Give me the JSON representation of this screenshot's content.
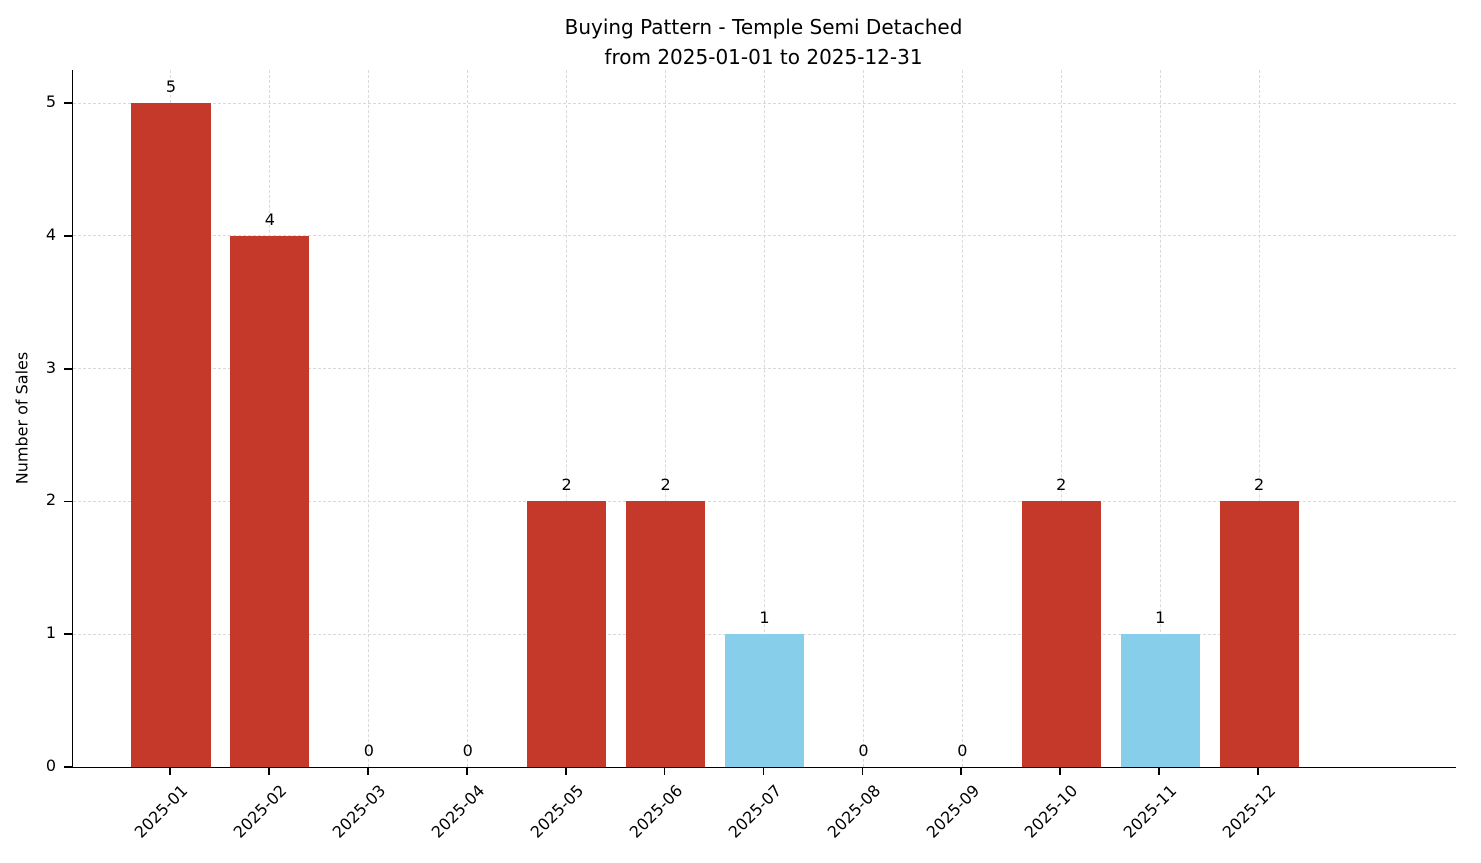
{
  "chart_data": {
    "type": "bar",
    "title": "Buying Pattern - Temple Semi Detached",
    "subtitle": "from 2025-01-01 to 2025-12-31",
    "ylabel": "Number of Sales",
    "xlabel": "",
    "categories": [
      "2025-01",
      "2025-02",
      "2025-03",
      "2025-04",
      "2025-05",
      "2025-06",
      "2025-07",
      "2025-08",
      "2025-09",
      "2025-10",
      "2025-11",
      "2025-12"
    ],
    "values": [
      5,
      4,
      0,
      0,
      2,
      2,
      1,
      0,
      0,
      2,
      1,
      2
    ],
    "bar_colors": [
      "#c5392b",
      "#c5392b",
      "#c5392b",
      "#c5392b",
      "#c5392b",
      "#c5392b",
      "#87ceeb",
      "#c5392b",
      "#c5392b",
      "#c5392b",
      "#87ceeb",
      "#c5392b"
    ],
    "yticks": [
      0,
      1,
      2,
      3,
      4,
      5
    ],
    "ylim": [
      0,
      5.25
    ],
    "grid": true,
    "grid_style": "dashed",
    "legend": "none",
    "colors": {
      "default_bar": "#c5392b",
      "highlight_bar": "#87ceeb",
      "grid": "#d9d9d9",
      "axis": "#000000",
      "background": "#ffffff"
    }
  }
}
